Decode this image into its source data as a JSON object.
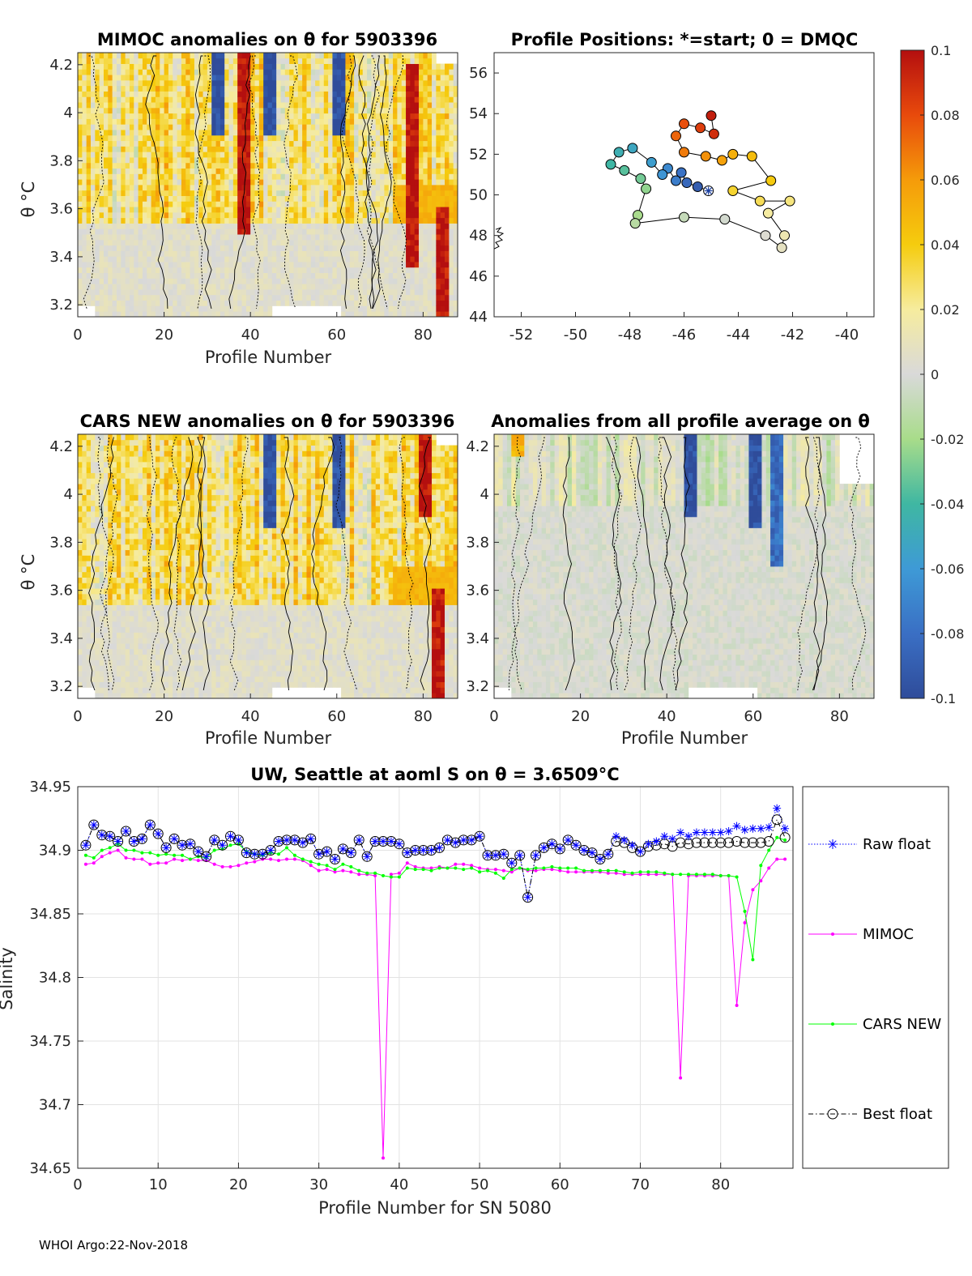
{
  "footer": "WHOI Argo:22-Nov-2018",
  "panels": {
    "mimoc": {
      "title": "MIMOC anomalies on θ  for 5903396",
      "xlabel": "Profile Number",
      "ylabel": "θ °C"
    },
    "positions": {
      "title": "Profile Positions: *=start; 0 = DMQC"
    },
    "cars": {
      "title": "CARS NEW anomalies on θ for 5903396",
      "xlabel": "Profile Number",
      "ylabel": "θ °C"
    },
    "avg": {
      "title": "Anomalies from all profile average on θ",
      "xlabel": "Profile Number"
    }
  },
  "heatmap_yticks": [
    "3.2",
    "3.4",
    "3.6",
    "3.8",
    "4",
    "4.2"
  ],
  "heatmap_xticks": [
    "0",
    "20",
    "40",
    "60",
    "80"
  ],
  "map_yticks": [
    "44",
    "46",
    "48",
    "50",
    "52",
    "54",
    "56"
  ],
  "map_xticks": [
    "-52",
    "-50",
    "-48",
    "-46",
    "-44",
    "-42",
    "-40"
  ],
  "colorbar": {
    "ticks": [
      "-0.1",
      "-0.08",
      "-0.06",
      "-0.04",
      "-0.02",
      "0",
      "0.02",
      "0.04",
      "0.06",
      "0.08",
      "0.1"
    ],
    "range": [
      -0.1,
      0.1
    ]
  },
  "colors": {
    "raw": "#0000ff",
    "mimoc": "#ff00ff",
    "cars": "#00ff00",
    "best": "#000000"
  },
  "chart_data": [
    {
      "type": "heatmap",
      "title": "MIMOC anomalies on θ  for 5903396",
      "xlabel": "Profile Number",
      "ylabel": "θ °C",
      "xlim": [
        0,
        88
      ],
      "ylim": [
        3.15,
        4.25
      ],
      "clim": [
        -0.1,
        0.1
      ],
      "features": [
        {
          "x": 38,
          "y0": 3.5,
          "y1": 4.25,
          "value": 0.1
        },
        {
          "x": 77,
          "y0": 3.35,
          "y1": 4.2,
          "value": 0.1
        },
        {
          "x": 84,
          "y0": 3.15,
          "y1": 3.6,
          "value": 0.1
        },
        {
          "x": 44,
          "y0": 3.9,
          "y1": 4.25,
          "value": -0.1
        },
        {
          "x": 60,
          "y0": 3.9,
          "y1": 4.25,
          "value": -0.1
        },
        {
          "x": 32,
          "y0": 3.9,
          "y1": 4.25,
          "value": -0.1
        }
      ]
    },
    {
      "type": "scatter",
      "title": "Profile Positions: *=start; 0 = DMQC",
      "xlim": [
        -53,
        -39
      ],
      "ylim": [
        44,
        57
      ],
      "path": [
        {
          "lon": -45.1,
          "lat": 50.2
        },
        {
          "lon": -45.5,
          "lat": 50.4
        },
        {
          "lon": -45.9,
          "lat": 50.6
        },
        {
          "lon": -46.1,
          "lat": 51.1
        },
        {
          "lon": -46.3,
          "lat": 50.7
        },
        {
          "lon": -46.6,
          "lat": 51.3
        },
        {
          "lon": -46.8,
          "lat": 51.0
        },
        {
          "lon": -47.2,
          "lat": 51.6
        },
        {
          "lon": -47.9,
          "lat": 52.3
        },
        {
          "lon": -48.4,
          "lat": 52.1
        },
        {
          "lon": -48.7,
          "lat": 51.5
        },
        {
          "lon": -48.2,
          "lat": 51.2
        },
        {
          "lon": -47.6,
          "lat": 50.8
        },
        {
          "lon": -47.4,
          "lat": 50.3
        },
        {
          "lon": -47.7,
          "lat": 49.0
        },
        {
          "lon": -47.8,
          "lat": 48.6
        },
        {
          "lon": -46.0,
          "lat": 48.9
        },
        {
          "lon": -44.5,
          "lat": 48.8
        },
        {
          "lon": -43.0,
          "lat": 48.0
        },
        {
          "lon": -42.4,
          "lat": 47.4
        },
        {
          "lon": -42.3,
          "lat": 48.0
        },
        {
          "lon": -42.9,
          "lat": 49.1
        },
        {
          "lon": -42.1,
          "lat": 49.7
        },
        {
          "lon": -43.2,
          "lat": 49.7
        },
        {
          "lon": -44.2,
          "lat": 50.2
        },
        {
          "lon": -42.8,
          "lat": 50.7
        },
        {
          "lon": -43.5,
          "lat": 51.9
        },
        {
          "lon": -44.2,
          "lat": 52.0
        },
        {
          "lon": -44.6,
          "lat": 51.7
        },
        {
          "lon": -45.2,
          "lat": 51.9
        },
        {
          "lon": -46.0,
          "lat": 52.1
        },
        {
          "lon": -46.3,
          "lat": 52.9
        },
        {
          "lon": -46.0,
          "lat": 53.5
        },
        {
          "lon": -45.4,
          "lat": 53.3
        },
        {
          "lon": -44.9,
          "lat": 53.0
        },
        {
          "lon": -45.0,
          "lat": 53.9
        }
      ]
    },
    {
      "type": "heatmap",
      "title": "CARS NEW anomalies on θ for 5903396",
      "xlabel": "Profile Number",
      "ylabel": "θ °C",
      "xlim": [
        0,
        88
      ],
      "ylim": [
        3.15,
        4.25
      ],
      "clim": [
        -0.1,
        0.1
      ],
      "features": [
        {
          "x": 80,
          "y0": 3.9,
          "y1": 4.25,
          "value": 0.1
        },
        {
          "x": 83,
          "y0": 3.15,
          "y1": 3.6,
          "value": 0.1
        },
        {
          "x": 44,
          "y0": 3.85,
          "y1": 4.25,
          "value": -0.1
        },
        {
          "x": 60,
          "y0": 3.85,
          "y1": 4.25,
          "value": -0.1
        }
      ]
    },
    {
      "type": "heatmap",
      "title": "Anomalies from all profile average on θ",
      "xlabel": "Profile Number",
      "xlim": [
        0,
        88
      ],
      "ylim": [
        3.15,
        4.25
      ],
      "clim": [
        -0.1,
        0.1
      ],
      "features": [
        {
          "x": 45,
          "y0": 3.9,
          "y1": 4.25,
          "value": -0.1
        },
        {
          "x": 60,
          "y0": 3.85,
          "y1": 4.25,
          "value": -0.1
        },
        {
          "x": 65,
          "y0": 3.7,
          "y1": 4.25,
          "value": -0.08
        },
        {
          "x": 5,
          "y0": 4.15,
          "y1": 4.25,
          "value": 0.05
        }
      ]
    },
    {
      "type": "line",
      "title": "UW, Seattle at aoml S on θ = 3.6509°C",
      "xlabel": "Profile Number for SN 5080",
      "ylabel": "Salinity",
      "xlim": [
        0,
        89
      ],
      "ylim": [
        34.65,
        34.95
      ],
      "xticks": [
        "0",
        "10",
        "20",
        "30",
        "40",
        "50",
        "60",
        "70",
        "80"
      ],
      "yticks": [
        "34.65",
        "34.7",
        "34.75",
        "34.8",
        "34.85",
        "34.9",
        "34.95"
      ],
      "series": [
        {
          "name": "Raw float",
          "x": [
            1,
            2,
            3,
            4,
            5,
            6,
            7,
            8,
            9,
            10,
            11,
            12,
            13,
            14,
            15,
            16,
            17,
            18,
            19,
            20,
            21,
            22,
            23,
            24,
            25,
            26,
            27,
            28,
            29,
            30,
            31,
            32,
            33,
            34,
            35,
            36,
            37,
            38,
            39,
            40,
            41,
            42,
            43,
            44,
            45,
            46,
            47,
            48,
            49,
            50,
            51,
            52,
            53,
            54,
            55,
            56,
            57,
            58,
            59,
            60,
            61,
            62,
            63,
            64,
            65,
            66,
            67,
            68,
            69,
            70,
            71,
            72,
            73,
            74,
            75,
            76,
            77,
            78,
            79,
            80,
            81,
            82,
            83,
            84,
            85,
            86,
            87,
            88
          ],
          "values": [
            34.904,
            34.92,
            34.912,
            34.911,
            34.907,
            34.915,
            34.907,
            34.909,
            34.92,
            34.913,
            34.902,
            34.909,
            34.904,
            34.905,
            34.899,
            34.895,
            34.908,
            34.904,
            34.911,
            34.908,
            34.898,
            34.897,
            34.897,
            34.9,
            34.907,
            34.908,
            34.908,
            34.906,
            34.909,
            34.897,
            34.899,
            34.893,
            34.901,
            34.898,
            34.908,
            34.895,
            34.907,
            34.907,
            34.907,
            34.905,
            34.898,
            34.9,
            34.9,
            34.9,
            34.902,
            34.908,
            34.906,
            34.908,
            34.908,
            34.911,
            34.896,
            34.896,
            34.897,
            34.89,
            34.896,
            34.863,
            34.896,
            34.902,
            34.905,
            34.901,
            34.908,
            34.904,
            34.9,
            34.898,
            34.893,
            34.897,
            34.911,
            34.908,
            34.904,
            34.899,
            34.905,
            34.907,
            34.911,
            34.909,
            34.914,
            34.911,
            34.914,
            34.914,
            34.914,
            34.914,
            34.915,
            34.919,
            34.916,
            34.917,
            34.917,
            34.918,
            34.933,
            34.917
          ]
        },
        {
          "name": "MIMOC",
          "x": [
            1,
            2,
            3,
            4,
            5,
            6,
            7,
            8,
            9,
            10,
            11,
            12,
            13,
            14,
            15,
            16,
            17,
            18,
            19,
            20,
            21,
            22,
            23,
            24,
            25,
            26,
            27,
            28,
            29,
            30,
            31,
            32,
            33,
            34,
            35,
            36,
            37,
            38,
            39,
            40,
            41,
            42,
            43,
            44,
            45,
            46,
            47,
            48,
            49,
            50,
            51,
            52,
            53,
            54,
            55,
            56,
            57,
            58,
            59,
            60,
            61,
            62,
            63,
            64,
            65,
            66,
            67,
            68,
            69,
            70,
            71,
            72,
            73,
            74,
            75,
            76,
            77,
            78,
            79,
            80,
            81,
            82,
            83,
            84,
            85,
            86,
            87,
            88
          ],
          "values": [
            34.889,
            34.89,
            34.895,
            34.898,
            34.9,
            34.894,
            34.893,
            34.893,
            34.889,
            34.89,
            34.89,
            34.893,
            34.892,
            34.893,
            34.892,
            34.892,
            34.889,
            34.887,
            34.887,
            34.888,
            34.89,
            34.891,
            34.893,
            34.893,
            34.892,
            34.893,
            34.893,
            34.892,
            34.888,
            34.884,
            34.885,
            34.883,
            34.884,
            34.883,
            34.881,
            34.881,
            34.88,
            34.658,
            34.881,
            34.882,
            34.89,
            34.887,
            34.886,
            34.886,
            34.887,
            34.886,
            34.889,
            34.889,
            34.888,
            34.886,
            34.885,
            34.885,
            34.884,
            34.883,
            34.886,
            34.884,
            34.884,
            34.885,
            34.885,
            34.884,
            34.883,
            34.883,
            34.883,
            34.883,
            34.883,
            34.882,
            34.882,
            34.881,
            34.881,
            34.881,
            34.881,
            34.881,
            34.881,
            34.881,
            34.721,
            34.88,
            34.88,
            34.88,
            34.88,
            34.88,
            34.88,
            34.778,
            34.843,
            34.869,
            34.876,
            34.886,
            34.893,
            34.893
          ]
        },
        {
          "name": "CARS NEW",
          "x": [
            1,
            2,
            3,
            4,
            5,
            6,
            7,
            8,
            9,
            10,
            11,
            12,
            13,
            14,
            15,
            16,
            17,
            18,
            19,
            20,
            21,
            22,
            23,
            24,
            25,
            26,
            27,
            28,
            29,
            30,
            31,
            32,
            33,
            34,
            35,
            36,
            37,
            38,
            39,
            40,
            41,
            42,
            43,
            44,
            45,
            46,
            47,
            48,
            49,
            50,
            51,
            52,
            53,
            54,
            55,
            56,
            57,
            58,
            59,
            60,
            61,
            62,
            63,
            64,
            65,
            66,
            67,
            68,
            69,
            70,
            71,
            72,
            73,
            74,
            75,
            76,
            77,
            78,
            79,
            80,
            81,
            82,
            83,
            84,
            85,
            86,
            87,
            88
          ],
          "values": [
            34.896,
            34.894,
            34.9,
            34.902,
            34.905,
            34.9,
            34.9,
            34.898,
            34.898,
            34.896,
            34.897,
            34.896,
            34.896,
            34.893,
            34.895,
            34.894,
            34.9,
            34.901,
            34.904,
            34.905,
            34.899,
            34.897,
            34.896,
            34.898,
            34.897,
            34.902,
            34.896,
            34.893,
            34.891,
            34.889,
            34.888,
            34.885,
            34.889,
            34.887,
            34.884,
            34.882,
            34.882,
            34.88,
            34.879,
            34.879,
            34.886,
            34.885,
            34.885,
            34.884,
            34.886,
            34.886,
            34.886,
            34.885,
            34.886,
            34.883,
            34.884,
            34.882,
            34.878,
            34.885,
            34.886,
            34.885,
            34.886,
            34.886,
            34.887,
            34.886,
            34.886,
            34.886,
            34.884,
            34.884,
            34.884,
            34.884,
            34.884,
            34.883,
            34.882,
            34.883,
            34.883,
            34.883,
            34.882,
            34.881,
            34.881,
            34.881,
            34.881,
            34.881,
            34.881,
            34.88,
            34.88,
            34.879,
            34.852,
            34.814,
            34.888,
            34.9,
            34.91,
            34.908
          ]
        },
        {
          "name": "Best float",
          "x": [
            1,
            2,
            3,
            4,
            5,
            6,
            7,
            8,
            9,
            10,
            11,
            12,
            13,
            14,
            15,
            16,
            17,
            18,
            19,
            20,
            21,
            22,
            23,
            24,
            25,
            26,
            27,
            28,
            29,
            30,
            31,
            32,
            33,
            34,
            35,
            36,
            37,
            38,
            39,
            40,
            41,
            42,
            43,
            44,
            45,
            46,
            47,
            48,
            49,
            50,
            51,
            52,
            53,
            54,
            55,
            56,
            57,
            58,
            59,
            60,
            61,
            62,
            63,
            64,
            65,
            66,
            67,
            68,
            69,
            70,
            71,
            72,
            73,
            74,
            75,
            76,
            77,
            78,
            79,
            80,
            81,
            82,
            83,
            84,
            85,
            86,
            87,
            88
          ],
          "values": [
            34.904,
            34.92,
            34.912,
            34.911,
            34.907,
            34.915,
            34.907,
            34.909,
            34.92,
            34.913,
            34.902,
            34.909,
            34.904,
            34.905,
            34.899,
            34.895,
            34.908,
            34.904,
            34.911,
            34.908,
            34.898,
            34.897,
            34.897,
            34.9,
            34.907,
            34.908,
            34.908,
            34.906,
            34.909,
            34.897,
            34.899,
            34.893,
            34.901,
            34.898,
            34.908,
            34.895,
            34.907,
            34.907,
            34.907,
            34.905,
            34.898,
            34.9,
            34.9,
            34.9,
            34.902,
            34.908,
            34.906,
            34.908,
            34.908,
            34.911,
            34.896,
            34.896,
            34.897,
            34.89,
            34.896,
            34.863,
            34.896,
            34.902,
            34.905,
            34.901,
            34.908,
            34.904,
            34.9,
            34.898,
            34.893,
            34.897,
            34.907,
            34.906,
            34.902,
            34.899,
            34.903,
            34.904,
            34.905,
            34.903,
            34.906,
            34.905,
            34.906,
            34.906,
            34.906,
            34.906,
            34.906,
            34.907,
            34.906,
            34.906,
            34.906,
            34.907,
            34.924,
            34.91
          ]
        }
      ]
    }
  ]
}
